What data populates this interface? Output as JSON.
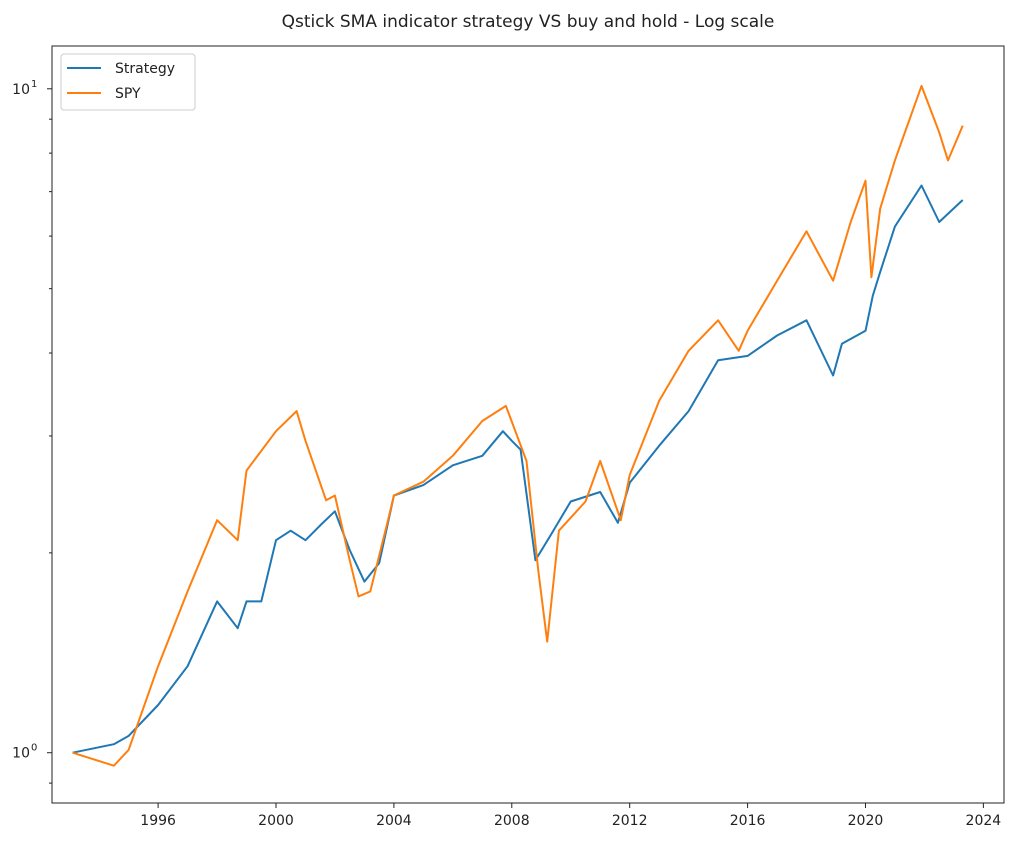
{
  "chart_data": {
    "type": "line",
    "title": "Qstick SMA indicator strategy VS buy and hold - Log scale",
    "xlabel": "",
    "ylabel": "",
    "yscale": "log",
    "xlim": [
      1992.4,
      2024.7
    ],
    "ylim": [
      0.84,
      11.6
    ],
    "x_ticks": [
      1996,
      2000,
      2004,
      2008,
      2012,
      2016,
      2020,
      2024
    ],
    "y_ticks": [
      {
        "value": 1,
        "label": "10",
        "exp": "0"
      },
      {
        "value": 10,
        "label": "10",
        "exp": "1"
      }
    ],
    "grid": false,
    "legend": "top-left",
    "series": [
      {
        "name": "Strategy",
        "color": "#1f77b4",
        "points": [
          [
            1993.1,
            1.0
          ],
          [
            1994.5,
            1.03
          ],
          [
            1995.0,
            1.06
          ],
          [
            1996.0,
            1.18
          ],
          [
            1997.0,
            1.35
          ],
          [
            1998.0,
            1.69
          ],
          [
            1998.7,
            1.54
          ],
          [
            1999.0,
            1.69
          ],
          [
            1999.5,
            1.69
          ],
          [
            2000.0,
            2.09
          ],
          [
            2000.5,
            2.16
          ],
          [
            2001.0,
            2.09
          ],
          [
            2001.5,
            2.2
          ],
          [
            2002.0,
            2.31
          ],
          [
            2002.5,
            2.02
          ],
          [
            2003.0,
            1.81
          ],
          [
            2003.5,
            1.93
          ],
          [
            2004.0,
            2.44
          ],
          [
            2005.0,
            2.53
          ],
          [
            2006.0,
            2.71
          ],
          [
            2007.0,
            2.8
          ],
          [
            2007.7,
            3.05
          ],
          [
            2008.0,
            2.95
          ],
          [
            2008.3,
            2.86
          ],
          [
            2008.8,
            1.95
          ],
          [
            2009.3,
            2.12
          ],
          [
            2010.0,
            2.39
          ],
          [
            2011.0,
            2.47
          ],
          [
            2011.6,
            2.22
          ],
          [
            2012.0,
            2.55
          ],
          [
            2013.0,
            2.9
          ],
          [
            2014.0,
            3.27
          ],
          [
            2015.0,
            3.9
          ],
          [
            2016.0,
            3.96
          ],
          [
            2017.0,
            4.25
          ],
          [
            2018.0,
            4.48
          ],
          [
            2018.9,
            3.7
          ],
          [
            2019.2,
            4.13
          ],
          [
            2020.0,
            4.32
          ],
          [
            2020.25,
            4.88
          ],
          [
            2020.5,
            5.3
          ],
          [
            2021.0,
            6.2
          ],
          [
            2021.9,
            7.15
          ],
          [
            2022.5,
            6.3
          ],
          [
            2023.3,
            6.8
          ]
        ]
      },
      {
        "name": "SPY",
        "color": "#ff7f0e",
        "points": [
          [
            1993.1,
            1.0
          ],
          [
            1994.5,
            0.956
          ],
          [
            1995.0,
            1.01
          ],
          [
            1996.0,
            1.35
          ],
          [
            1997.0,
            1.75
          ],
          [
            1998.0,
            2.24
          ],
          [
            1998.7,
            2.09
          ],
          [
            1999.0,
            2.66
          ],
          [
            2000.0,
            3.05
          ],
          [
            2000.7,
            3.27
          ],
          [
            2001.0,
            2.95
          ],
          [
            2001.7,
            2.4
          ],
          [
            2002.0,
            2.44
          ],
          [
            2002.5,
            1.95
          ],
          [
            2002.8,
            1.72
          ],
          [
            2003.2,
            1.75
          ],
          [
            2003.8,
            2.24
          ],
          [
            2004.0,
            2.44
          ],
          [
            2005.0,
            2.56
          ],
          [
            2006.0,
            2.8
          ],
          [
            2007.0,
            3.16
          ],
          [
            2007.8,
            3.33
          ],
          [
            2008.5,
            2.75
          ],
          [
            2008.9,
            1.88
          ],
          [
            2009.2,
            1.47
          ],
          [
            2009.6,
            2.16
          ],
          [
            2010.5,
            2.39
          ],
          [
            2011.0,
            2.75
          ],
          [
            2011.7,
            2.24
          ],
          [
            2012.0,
            2.62
          ],
          [
            2013.0,
            3.39
          ],
          [
            2014.0,
            4.03
          ],
          [
            2015.0,
            4.48
          ],
          [
            2015.7,
            4.03
          ],
          [
            2016.0,
            4.32
          ],
          [
            2017.0,
            5.14
          ],
          [
            2018.0,
            6.1
          ],
          [
            2018.9,
            5.14
          ],
          [
            2019.5,
            6.3
          ],
          [
            2020.0,
            7.27
          ],
          [
            2020.2,
            5.2
          ],
          [
            2020.5,
            6.6
          ],
          [
            2021.0,
            7.8
          ],
          [
            2021.9,
            10.1
          ],
          [
            2022.5,
            8.6
          ],
          [
            2022.8,
            7.8
          ],
          [
            2023.3,
            8.8
          ]
        ]
      }
    ]
  }
}
